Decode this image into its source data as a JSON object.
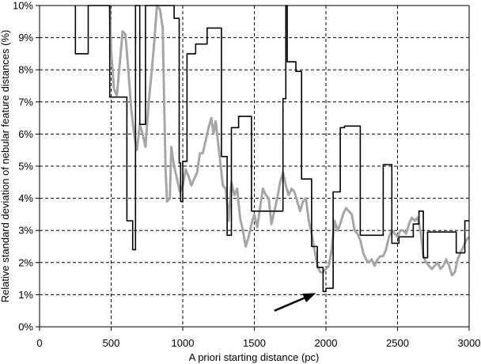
{
  "chart_data": {
    "type": "line",
    "xlabel": "A priori starting distance (pc)",
    "ylabel": "Relative standard deviation of nebular feature distances (%)",
    "xlim": [
      0,
      3000
    ],
    "ylim": [
      0,
      10
    ],
    "x_ticks": [
      0,
      500,
      1000,
      1500,
      2000,
      2500,
      3000
    ],
    "y_ticks": [
      0,
      1,
      2,
      3,
      4,
      5,
      6,
      7,
      8,
      9,
      10
    ],
    "x_tick_labels": [
      "0",
      "500",
      "1000",
      "1500",
      "2000",
      "2500",
      "3000"
    ],
    "y_tick_labels": [
      "0%",
      "1%",
      "2%",
      "3%",
      "4%",
      "5%",
      "6%",
      "7%",
      "8%",
      "9%",
      "10%"
    ],
    "grid": "dashed horizontal and vertical",
    "legend": "none",
    "series": [
      {
        "color": "#000000",
        "style": "step",
        "points": [
          [
            250,
            10
          ],
          [
            250,
            8.5
          ],
          [
            340,
            8.5
          ],
          [
            340,
            10
          ],
          [
            490,
            10
          ],
          [
            490,
            7.15
          ],
          [
            610,
            7.15
          ],
          [
            610,
            3.3
          ],
          [
            650,
            3.3
          ],
          [
            650,
            2.4
          ],
          [
            670,
            2.4
          ],
          [
            670,
            10
          ],
          [
            700,
            10
          ],
          [
            700,
            6.3
          ],
          [
            740,
            6.3
          ],
          [
            740,
            10
          ],
          [
            875,
            10
          ],
          [
            875,
            10
          ],
          [
            940,
            10
          ],
          [
            940,
            9.6
          ],
          [
            975,
            9.6
          ],
          [
            975,
            5.1
          ],
          [
            985,
            5.1
          ],
          [
            985,
            3.9
          ],
          [
            1000,
            3.9
          ],
          [
            1000,
            5.15
          ],
          [
            1030,
            5.15
          ],
          [
            1030,
            8.5
          ],
          [
            1090,
            8.5
          ],
          [
            1090,
            8.8
          ],
          [
            1170,
            8.8
          ],
          [
            1170,
            9.3
          ],
          [
            1270,
            9.3
          ],
          [
            1270,
            5.3
          ],
          [
            1310,
            5.3
          ],
          [
            1310,
            2.85
          ],
          [
            1340,
            2.85
          ],
          [
            1340,
            6.2
          ],
          [
            1390,
            6.2
          ],
          [
            1390,
            6.55
          ],
          [
            1480,
            6.55
          ],
          [
            1480,
            3.6
          ],
          [
            1700,
            3.6
          ],
          [
            1700,
            7.1
          ],
          [
            1720,
            7.1
          ],
          [
            1720,
            10
          ],
          [
            1730,
            10
          ],
          [
            1730,
            8.25
          ],
          [
            1790,
            8.25
          ],
          [
            1790,
            7.95
          ],
          [
            1830,
            7.95
          ],
          [
            1830,
            4.6
          ],
          [
            1900,
            4.6
          ],
          [
            1900,
            2.5
          ],
          [
            1940,
            2.5
          ],
          [
            1940,
            1.85
          ],
          [
            1980,
            1.85
          ],
          [
            1980,
            1.1
          ],
          [
            2000,
            1.1
          ],
          [
            2000,
            1.2
          ],
          [
            2050,
            1.2
          ],
          [
            2050,
            4.2
          ],
          [
            2100,
            4.2
          ],
          [
            2100,
            6.2
          ],
          [
            2130,
            6.2
          ],
          [
            2130,
            6.25
          ],
          [
            2240,
            6.25
          ],
          [
            2240,
            2.85
          ],
          [
            2400,
            2.85
          ],
          [
            2400,
            5.05
          ],
          [
            2460,
            5.05
          ],
          [
            2460,
            2.6
          ],
          [
            2510,
            2.6
          ],
          [
            2510,
            2.8
          ],
          [
            2610,
            2.8
          ],
          [
            2610,
            3.2
          ],
          [
            2650,
            3.2
          ],
          [
            2650,
            3.6
          ],
          [
            2680,
            3.6
          ],
          [
            2680,
            2.15
          ],
          [
            2710,
            2.15
          ],
          [
            2710,
            2.95
          ],
          [
            2910,
            2.95
          ],
          [
            2910,
            2.3
          ],
          [
            2970,
            2.3
          ],
          [
            2970,
            3.3
          ],
          [
            3000,
            3.3
          ]
        ]
      },
      {
        "color": "#a6a6a6",
        "style": "line",
        "points": [
          [
            490,
            10
          ],
          [
            500,
            8.6
          ],
          [
            520,
            7.4
          ],
          [
            540,
            7.2
          ],
          [
            560,
            8.2
          ],
          [
            580,
            9.2
          ],
          [
            600,
            9.1
          ],
          [
            620,
            8.0
          ],
          [
            640,
            6.8
          ],
          [
            660,
            6.0
          ],
          [
            680,
            5.5
          ],
          [
            700,
            6.3
          ],
          [
            720,
            6.0
          ],
          [
            740,
            5.6
          ],
          [
            760,
            6.9
          ],
          [
            780,
            7.8
          ],
          [
            800,
            8.8
          ],
          [
            820,
            10
          ],
          [
            840,
            9.9
          ],
          [
            860,
            9.3
          ],
          [
            870,
            7.0
          ],
          [
            880,
            4.9
          ],
          [
            890,
            3.9
          ],
          [
            910,
            4.0
          ],
          [
            920,
            5.6
          ],
          [
            940,
            5.0
          ],
          [
            960,
            4.6
          ],
          [
            980,
            4.2
          ],
          [
            1000,
            4.4
          ],
          [
            1020,
            4.9
          ],
          [
            1040,
            4.7
          ],
          [
            1060,
            4.4
          ],
          [
            1080,
            4.6
          ],
          [
            1100,
            4.8
          ],
          [
            1120,
            5.4
          ],
          [
            1140,
            5.4
          ],
          [
            1160,
            5.8
          ],
          [
            1180,
            6.2
          ],
          [
            1200,
            6.5
          ],
          [
            1215,
            6.0
          ],
          [
            1230,
            6.4
          ],
          [
            1250,
            5.6
          ],
          [
            1265,
            5.0
          ],
          [
            1280,
            4.4
          ],
          [
            1300,
            4.3
          ],
          [
            1320,
            3.3
          ],
          [
            1340,
            4.5
          ],
          [
            1360,
            4.1
          ],
          [
            1380,
            4.3
          ],
          [
            1400,
            3.4
          ],
          [
            1420,
            3.0
          ],
          [
            1440,
            2.5
          ],
          [
            1460,
            2.8
          ],
          [
            1480,
            3.2
          ],
          [
            1500,
            3.5
          ],
          [
            1520,
            3.1
          ],
          [
            1540,
            3.7
          ],
          [
            1560,
            4.3
          ],
          [
            1580,
            4.1
          ],
          [
            1600,
            4.0
          ],
          [
            1620,
            3.2
          ],
          [
            1640,
            3.6
          ],
          [
            1660,
            4.0
          ],
          [
            1680,
            4.5
          ],
          [
            1700,
            4.8
          ],
          [
            1720,
            4.4
          ],
          [
            1740,
            4.1
          ],
          [
            1760,
            4.3
          ],
          [
            1780,
            4.2
          ],
          [
            1800,
            3.9
          ],
          [
            1820,
            3.6
          ],
          [
            1840,
            3.9
          ],
          [
            1860,
            4.0
          ],
          [
            1880,
            3.3
          ],
          [
            1900,
            2.9
          ],
          [
            1920,
            2.4
          ],
          [
            1940,
            1.9
          ],
          [
            1960,
            1.7
          ],
          [
            1980,
            1.7
          ],
          [
            2000,
            1.8
          ],
          [
            2020,
            1.9
          ],
          [
            2040,
            2.4
          ],
          [
            2060,
            3.3
          ],
          [
            2080,
            3.0
          ],
          [
            2100,
            3.2
          ],
          [
            2120,
            3.5
          ],
          [
            2140,
            3.7
          ],
          [
            2160,
            3.6
          ],
          [
            2180,
            3.5
          ],
          [
            2200,
            3.0
          ],
          [
            2220,
            2.9
          ],
          [
            2240,
            2.7
          ],
          [
            2260,
            2.3
          ],
          [
            2280,
            2.1
          ],
          [
            2300,
            2.0
          ],
          [
            2320,
            2.1
          ],
          [
            2340,
            1.9
          ],
          [
            2360,
            2.1
          ],
          [
            2380,
            2.2
          ],
          [
            2400,
            2.2
          ],
          [
            2420,
            2.4
          ],
          [
            2440,
            2.8
          ],
          [
            2460,
            3.0
          ],
          [
            2480,
            2.9
          ],
          [
            2500,
            2.8
          ],
          [
            2520,
            3.0
          ],
          [
            2540,
            3.0
          ],
          [
            2560,
            2.9
          ],
          [
            2580,
            3.2
          ],
          [
            2600,
            3.4
          ],
          [
            2620,
            3.3
          ],
          [
            2640,
            3.4
          ],
          [
            2660,
            3.0
          ],
          [
            2680,
            2.2
          ],
          [
            2700,
            2.0
          ],
          [
            2720,
            1.9
          ],
          [
            2740,
            1.8
          ],
          [
            2760,
            1.9
          ],
          [
            2780,
            2.0
          ],
          [
            2800,
            1.8
          ],
          [
            2820,
            1.9
          ],
          [
            2840,
            2.1
          ],
          [
            2860,
            1.9
          ],
          [
            2880,
            1.6
          ],
          [
            2900,
            1.7
          ],
          [
            2920,
            2.1
          ],
          [
            2940,
            2.3
          ],
          [
            2960,
            2.5
          ],
          [
            2980,
            2.7
          ],
          [
            3000,
            2.8
          ]
        ]
      }
    ],
    "annotations": [
      {
        "type": "arrow",
        "from": [
          1640,
          0.5
        ],
        "to": [
          1930,
          1.05
        ],
        "color": "#000000"
      }
    ]
  }
}
